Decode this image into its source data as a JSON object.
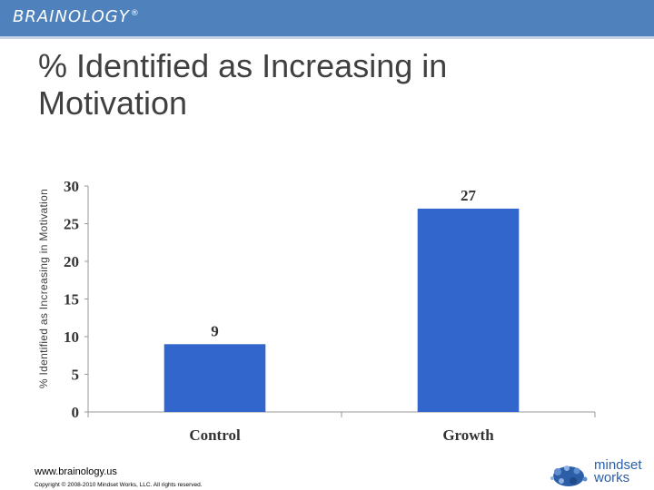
{
  "header": {
    "brand_name": "BRAINOLOGY",
    "brand_mark": "®",
    "bar_color": "#4f81bd"
  },
  "slide": {
    "title": "% Identified as Increasing in Motivation"
  },
  "chart_data": {
    "type": "bar",
    "categories": [
      "Control",
      "Growth"
    ],
    "values": [
      9,
      27
    ],
    "value_labels": [
      "9",
      "27"
    ],
    "title": "",
    "xlabel": "",
    "ylabel": "% Identified as Increasing in Motivation",
    "ylim": [
      0,
      30
    ],
    "yticks": [
      "0",
      "5",
      "10",
      "15",
      "20",
      "25",
      "30"
    ],
    "bar_color": "#3366cc",
    "grid": false,
    "legend": "none"
  },
  "footer": {
    "url": "www.brainology.us",
    "copyright": "Copyright © 2008-2010 Mindset Works, LLC. All rights reserved."
  },
  "logo": {
    "line1": "mindset",
    "line2": "works",
    "icon": "brain-icon",
    "color": "#2b5ea7"
  }
}
